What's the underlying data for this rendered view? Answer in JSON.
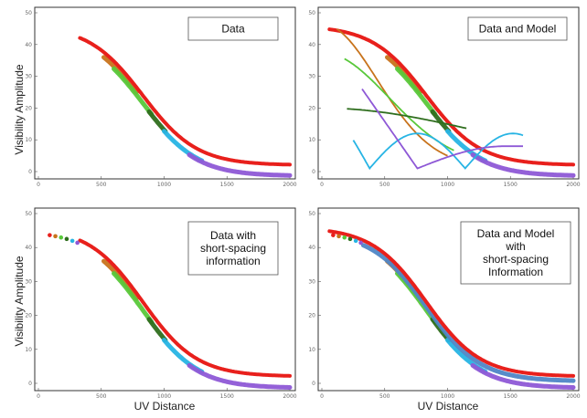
{
  "figure": {
    "y_label": "Visibility Amplitude",
    "x_label": "UV Distance"
  },
  "colors": {
    "red": "#e8201c",
    "orange": "#c8731c",
    "light_green": "#58c83a",
    "dark_green": "#2f6e1e",
    "cyan": "#27b4e4",
    "purple": "#8e58d6",
    "blue": "#4f86c6"
  },
  "chart_data": [
    {
      "type": "scatter",
      "panel": "top-left",
      "label_box": [
        "Data"
      ],
      "xlim": [
        0,
        2000
      ],
      "ylim": [
        0,
        50
      ],
      "xticks": [
        "0",
        "500",
        "1000",
        "1500",
        "2000"
      ],
      "yticks": [
        "0",
        "10",
        "20",
        "30",
        "40",
        "50"
      ],
      "has_model": false,
      "short_spacing": false
    },
    {
      "type": "scatter",
      "panel": "top-right",
      "label_box": [
        "Data and Model"
      ],
      "xlim": [
        0,
        2000
      ],
      "ylim": [
        0,
        50
      ],
      "xticks": [
        "0",
        "500",
        "1000",
        "1500",
        "2000"
      ],
      "yticks": [
        "0",
        "10",
        "20",
        "30",
        "40",
        "50"
      ],
      "has_model": true,
      "short_spacing": false
    },
    {
      "type": "scatter",
      "panel": "bottom-left",
      "label_box": [
        "Data with",
        "short-spacing",
        "information"
      ],
      "xlim": [
        0,
        2000
      ],
      "ylim": [
        0,
        50
      ],
      "xticks": [
        "0",
        "500",
        "1000",
        "1500",
        "2000"
      ],
      "yticks": [
        "0",
        "10",
        "20",
        "30",
        "40",
        "50"
      ],
      "has_model": false,
      "short_spacing": true
    },
    {
      "type": "scatter",
      "panel": "bottom-right",
      "label_box": [
        "Data and Model",
        "with",
        "short-spacing",
        "Information"
      ],
      "xlim": [
        0,
        2000
      ],
      "ylim": [
        0,
        50
      ],
      "xticks": [
        "0",
        "500",
        "1000",
        "1500",
        "2000"
      ],
      "yticks": [
        "0",
        "10",
        "20",
        "30",
        "40",
        "50"
      ],
      "has_model": true,
      "short_spacing": true
    }
  ]
}
